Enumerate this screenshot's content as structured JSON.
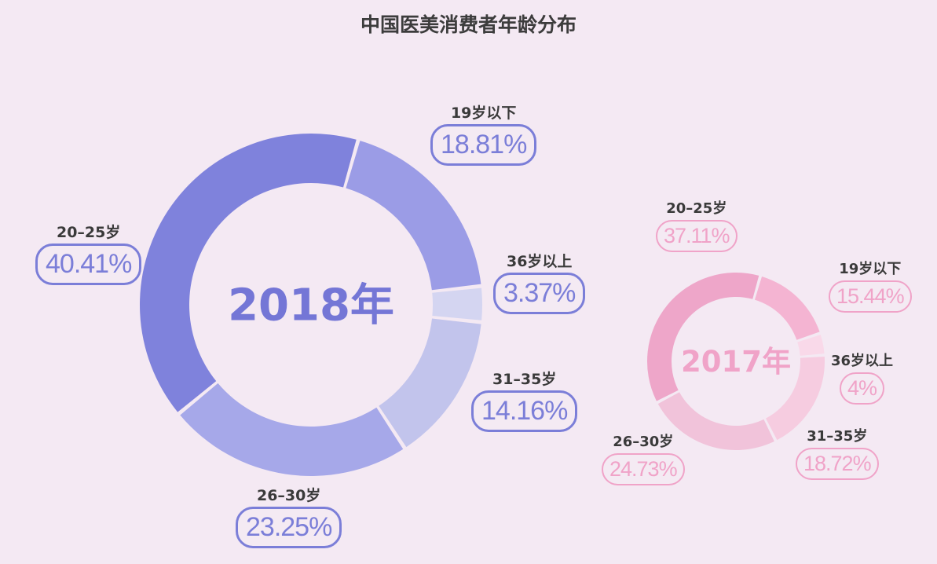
{
  "title": "中国医美消费者年龄分布",
  "chart_data": [
    {
      "type": "pie",
      "title": "2018年",
      "categories": [
        "19岁以下",
        "36岁以上",
        "31-35岁",
        "26-30岁",
        "20-25岁"
      ],
      "labels": [
        "19岁以下",
        "36岁以上",
        "31–35岁",
        "26–30岁",
        "20–25岁"
      ],
      "values_text": [
        "18.81%",
        "3.37%",
        "14.16%",
        "23.25%",
        "40.41%"
      ],
      "values": [
        18.81,
        3.37,
        14.16,
        23.25,
        40.41
      ],
      "colors": [
        "#9b9ce6",
        "#d4d5f1",
        "#c2c4ec",
        "#a6a8e9",
        "#7f82dc"
      ],
      "accent": "#7b7ed8"
    },
    {
      "type": "pie",
      "title": "2017年",
      "categories": [
        "19岁以下",
        "36岁以上",
        "31-35岁",
        "26-30岁",
        "20-25岁"
      ],
      "labels": [
        "19岁以下",
        "36岁以上",
        "31–35岁",
        "26–30岁",
        "20–25岁"
      ],
      "values_text": [
        "15.44%",
        "4%",
        "18.72%",
        "24.73%",
        "37.11%"
      ],
      "values": [
        15.44,
        4,
        18.72,
        24.73,
        37.11
      ],
      "colors": [
        "#f4b4d2",
        "#f9d9e9",
        "#f6cce0",
        "#f1c3da",
        "#eea6c9"
      ],
      "accent": "#f0a3c8"
    }
  ]
}
